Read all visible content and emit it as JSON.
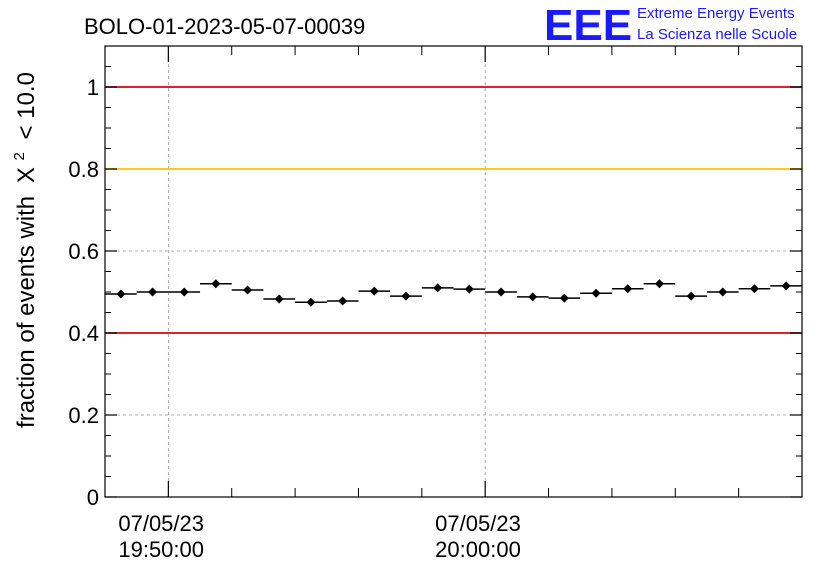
{
  "chart_data": {
    "type": "scatter",
    "title": "BOLO-01-2023-05-07-00039",
    "ylabel_prefix": "fraction of events with",
    "ylabel_symbol": "Χ",
    "ylabel_superscript": "2",
    "ylabel_suffix": "< 10.0",
    "ylim": [
      0,
      1.1
    ],
    "xlim_minutes": [
      0,
      22
    ],
    "y_ticks": [
      {
        "value": 0,
        "label": "0"
      },
      {
        "value": 0.2,
        "label": "0.2"
      },
      {
        "value": 0.4,
        "label": "0.4"
      },
      {
        "value": 0.6,
        "label": "0.6"
      },
      {
        "value": 0.8,
        "label": "0.8"
      },
      {
        "value": 1.0,
        "label": "1"
      }
    ],
    "x_ticks": [
      {
        "minute": 2,
        "date": "07/05/23",
        "time": "19:50:00"
      },
      {
        "minute": 12,
        "date": "07/05/23",
        "time": "20:00:00"
      }
    ],
    "x_minor_ticks_minutes": [
      4,
      6,
      8,
      10,
      14,
      16,
      18,
      20
    ],
    "grid": true,
    "reference_lines": [
      {
        "y": 1.0,
        "color": "#e00000"
      },
      {
        "y": 0.8,
        "color": "#ffc000"
      },
      {
        "y": 0.4,
        "color": "#e00000"
      }
    ],
    "points": [
      {
        "x": 0.5,
        "y": 0.495
      },
      {
        "x": 1.5,
        "y": 0.5
      },
      {
        "x": 2.5,
        "y": 0.5
      },
      {
        "x": 3.5,
        "y": 0.52
      },
      {
        "x": 4.5,
        "y": 0.505
      },
      {
        "x": 5.5,
        "y": 0.483
      },
      {
        "x": 6.5,
        "y": 0.475
      },
      {
        "x": 7.5,
        "y": 0.478
      },
      {
        "x": 8.5,
        "y": 0.502
      },
      {
        "x": 9.5,
        "y": 0.49
      },
      {
        "x": 10.5,
        "y": 0.51
      },
      {
        "x": 11.5,
        "y": 0.507
      },
      {
        "x": 12.5,
        "y": 0.5
      },
      {
        "x": 13.5,
        "y": 0.488
      },
      {
        "x": 14.5,
        "y": 0.485
      },
      {
        "x": 15.5,
        "y": 0.497
      },
      {
        "x": 16.5,
        "y": 0.508
      },
      {
        "x": 17.5,
        "y": 0.52
      },
      {
        "x": 18.5,
        "y": 0.49
      },
      {
        "x": 19.5,
        "y": 0.5
      },
      {
        "x": 20.5,
        "y": 0.508
      },
      {
        "x": 21.5,
        "y": 0.515
      }
    ],
    "x_error_minutes": 0.5,
    "marker_color": "#000000"
  },
  "branding": {
    "logo_text": "EEE",
    "line1": "Extreme Energy Events",
    "line2": "La Scienza nelle Scuole",
    "color": "#1a1aff"
  }
}
